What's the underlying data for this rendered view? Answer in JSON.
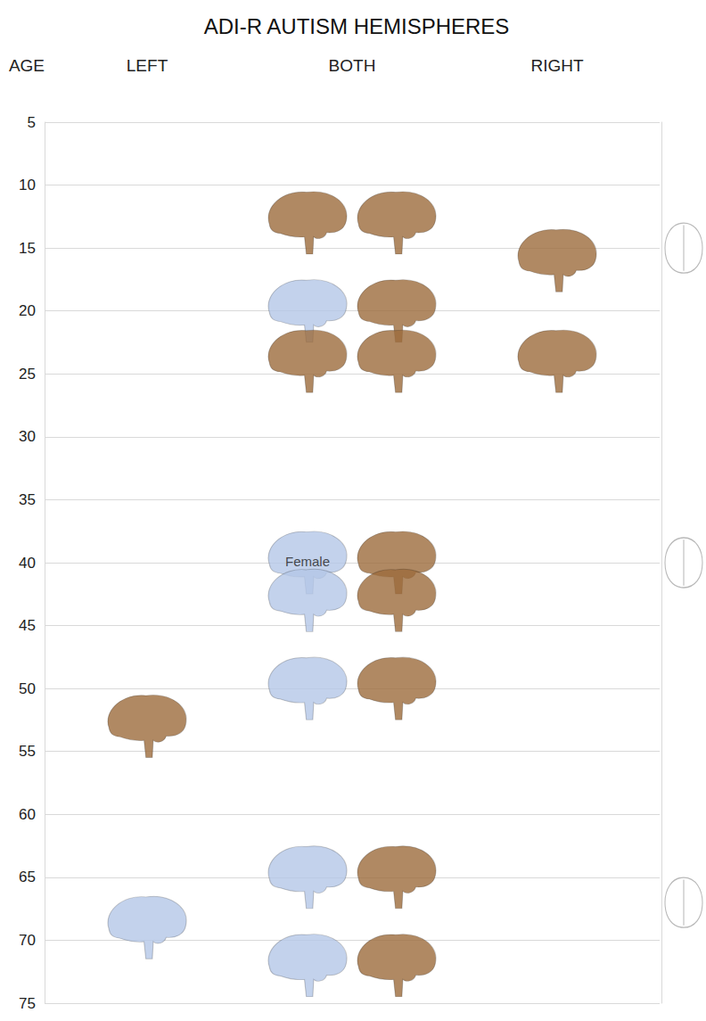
{
  "chart_data": {
    "type": "scatter",
    "title": "ADI-R AUTISM HEMISPHERES",
    "y_label": "AGE",
    "categories": [
      "LEFT",
      "BOTH",
      "RIGHT"
    ],
    "ylim": [
      5,
      75
    ],
    "yticks": [
      5,
      10,
      15,
      20,
      25,
      30,
      35,
      40,
      45,
      50,
      55,
      60,
      65,
      70,
      75
    ],
    "grid": true,
    "series": [
      {
        "color": "#b4c7e7",
        "marker": "brain",
        "values": [
          [
            "BOTH",
            20
          ],
          [
            "BOTH",
            40
          ],
          [
            "BOTH",
            43
          ],
          [
            "BOTH",
            50
          ],
          [
            "LEFT",
            69
          ],
          [
            "BOTH",
            65
          ],
          [
            "BOTH",
            72
          ]
        ]
      },
      {
        "color": "#9c6b3c",
        "marker": "brain",
        "values": [
          [
            "BOTH",
            13
          ],
          [
            "BOTH",
            13
          ],
          [
            "RIGHT",
            16
          ],
          [
            "BOTH",
            20
          ],
          [
            "BOTH",
            24
          ],
          [
            "BOTH",
            24
          ],
          [
            "RIGHT",
            24
          ],
          [
            "BOTH",
            40
          ],
          [
            "BOTH",
            43
          ],
          [
            "BOTH",
            50
          ],
          [
            "LEFT",
            53
          ],
          [
            "BOTH",
            65
          ],
          [
            "BOTH",
            72
          ]
        ]
      },
      {
        "color": "#a6a6a6",
        "marker": "outline",
        "values": [
          15,
          40,
          67
        ]
      }
    ],
    "annotations": [
      {
        "text": "Female",
        "x": "BOTH",
        "y": 40
      }
    ]
  }
}
